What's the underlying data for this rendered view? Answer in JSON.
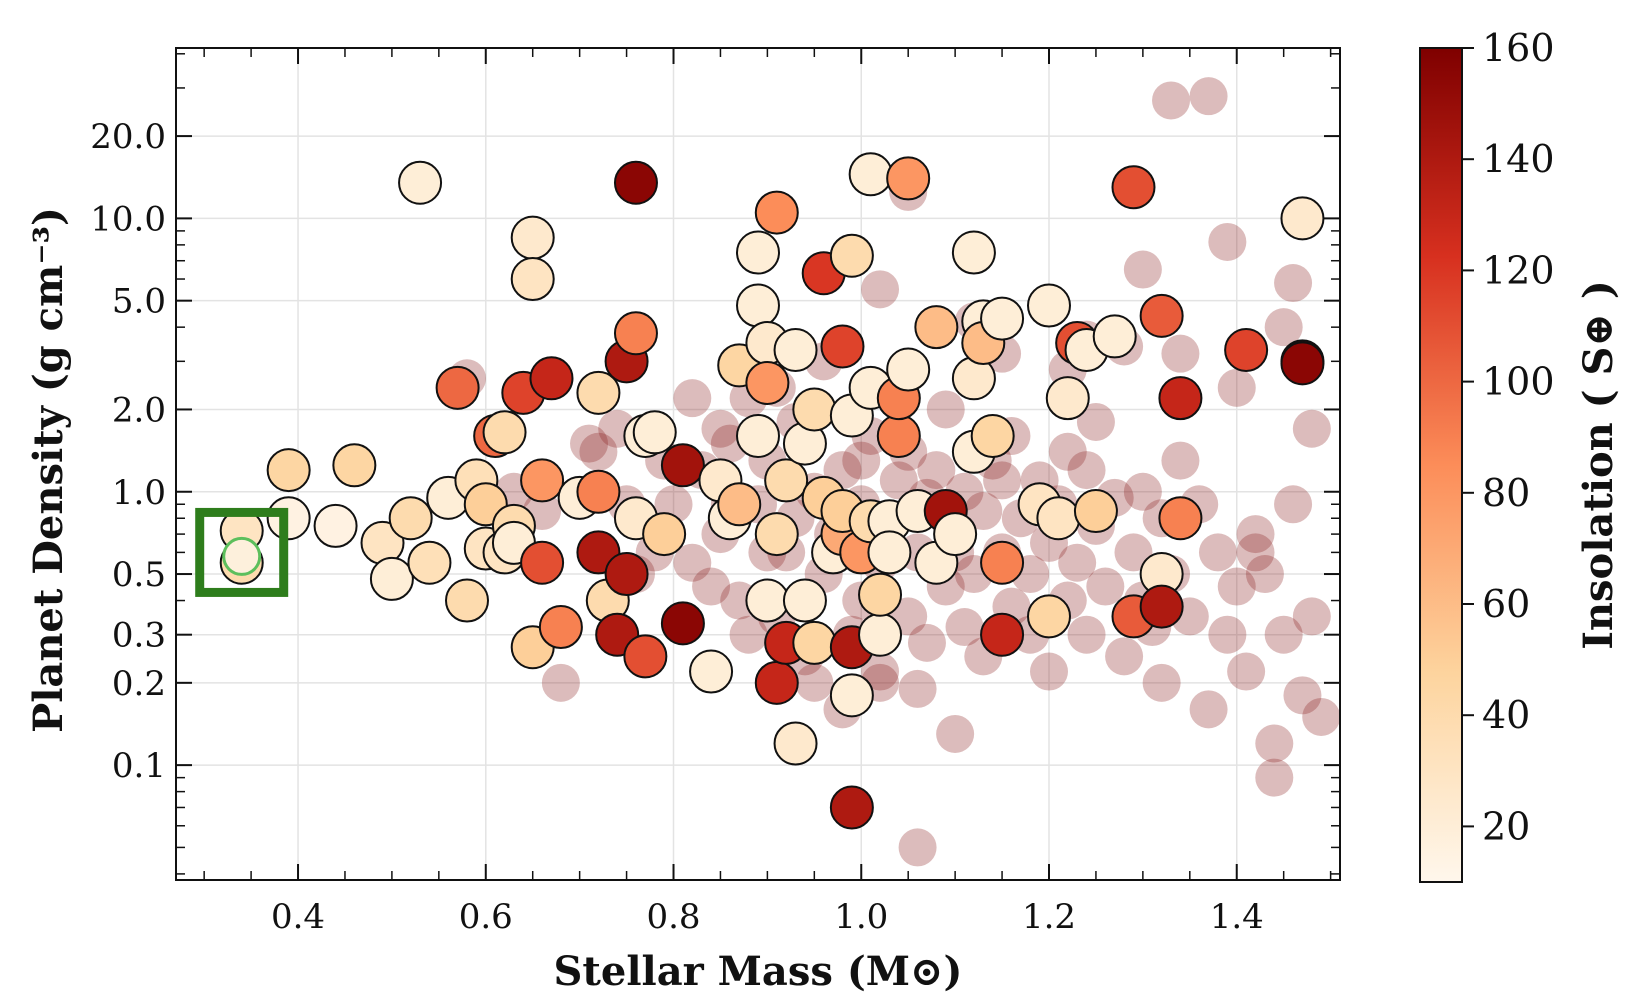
{
  "chart_data": {
    "type": "scatter",
    "title": "",
    "xlabel": "Stellar Mass (M⊙)",
    "ylabel": "Planet Density (g cm⁻³)",
    "xlim": [
      0.27,
      1.51
    ],
    "ylim": [
      0.038,
      42
    ],
    "yscale": "log",
    "grid": true,
    "x_ticks": [
      "0.4",
      "0.6",
      "0.8",
      "1.0",
      "1.2",
      "1.4"
    ],
    "y_ticks": [
      "0.1",
      "0.2",
      "0.3",
      "0.5",
      "1.0",
      "2.0",
      "5.0",
      "10.0",
      "20.0"
    ],
    "colorbar": {
      "label": "Insolation ( S⊕ )",
      "range": [
        10,
        160
      ],
      "ticks": [
        "20",
        "40",
        "60",
        "80",
        "100",
        "120",
        "140",
        "160"
      ],
      "colormap": "OrRd",
      "colors": [
        "#fff7ec",
        "#fdd49e",
        "#fc8d59",
        "#d7301f",
        "#7f0000"
      ]
    },
    "highlight": {
      "type": "square",
      "color": "#2e7d1c",
      "x": 0.34,
      "y": 0.58,
      "marker_color": "#5cbf5c"
    },
    "background_series": {
      "name": "",
      "alpha": 0.3,
      "color": "#8b2020",
      "points": [
        [
          0.58,
          2.6
        ],
        [
          0.63,
          1.0
        ],
        [
          0.66,
          0.85
        ],
        [
          0.68,
          0.2
        ],
        [
          0.72,
          1.4
        ],
        [
          0.74,
          1.7
        ],
        [
          0.76,
          0.5
        ],
        [
          0.78,
          0.6
        ],
        [
          0.8,
          0.9
        ],
        [
          0.82,
          0.55
        ],
        [
          0.83,
          1.2
        ],
        [
          0.84,
          0.45
        ],
        [
          0.85,
          0.7
        ],
        [
          0.86,
          1.5
        ],
        [
          0.87,
          0.4
        ],
        [
          0.88,
          0.3
        ],
        [
          0.88,
          2.2
        ],
        [
          0.89,
          0.9
        ],
        [
          0.9,
          1.3
        ],
        [
          0.91,
          0.35
        ],
        [
          0.92,
          0.6
        ],
        [
          0.93,
          0.8
        ],
        [
          0.93,
          1.8
        ],
        [
          0.94,
          0.25
        ],
        [
          0.95,
          1.0
        ],
        [
          0.96,
          0.5
        ],
        [
          0.97,
          0.7
        ],
        [
          0.98,
          1.2
        ],
        [
          0.99,
          0.3
        ],
        [
          1.0,
          0.4
        ],
        [
          1.0,
          0.9
        ],
        [
          1.01,
          1.6
        ],
        [
          1.02,
          0.55
        ],
        [
          1.02,
          0.22
        ],
        [
          1.03,
          0.75
        ],
        [
          1.04,
          1.1
        ],
        [
          1.05,
          0.35
        ],
        [
          1.05,
          1.4
        ],
        [
          1.06,
          0.6
        ],
        [
          1.07,
          0.28
        ],
        [
          1.07,
          0.95
        ],
        [
          1.08,
          1.2
        ],
        [
          1.09,
          0.45
        ],
        [
          1.09,
          2.0
        ],
        [
          1.1,
          0.7
        ],
        [
          1.11,
          0.32
        ],
        [
          1.11,
          1.0
        ],
        [
          1.12,
          0.5
        ],
        [
          1.13,
          0.85
        ],
        [
          1.13,
          0.25
        ],
        [
          1.14,
          1.3
        ],
        [
          1.15,
          0.6
        ],
        [
          1.16,
          0.38
        ],
        [
          1.16,
          1.6
        ],
        [
          1.17,
          0.8
        ],
        [
          1.18,
          0.3
        ],
        [
          1.18,
          0.5
        ],
        [
          1.19,
          1.1
        ],
        [
          1.2,
          0.65
        ],
        [
          1.2,
          0.22
        ],
        [
          1.21,
          0.9
        ],
        [
          1.22,
          0.4
        ],
        [
          1.22,
          1.4
        ],
        [
          1.23,
          0.55
        ],
        [
          1.24,
          0.3
        ],
        [
          1.25,
          0.75
        ],
        [
          1.25,
          1.8
        ],
        [
          1.26,
          0.45
        ],
        [
          1.27,
          0.95
        ],
        [
          1.28,
          0.25
        ],
        [
          1.29,
          0.6
        ],
        [
          1.3,
          0.4
        ],
        [
          1.3,
          1.0
        ],
        [
          1.31,
          0.32
        ],
        [
          1.32,
          0.8
        ],
        [
          1.32,
          0.2
        ],
        [
          1.33,
          0.5
        ],
        [
          1.34,
          1.3
        ],
        [
          1.35,
          0.35
        ],
        [
          1.36,
          0.9
        ],
        [
          1.37,
          0.16
        ],
        [
          1.38,
          0.6
        ],
        [
          1.39,
          0.3
        ],
        [
          1.4,
          0.45
        ],
        [
          1.41,
          0.22
        ],
        [
          1.42,
          0.7
        ],
        [
          1.43,
          0.5
        ],
        [
          1.44,
          0.12
        ],
        [
          1.45,
          0.3
        ],
        [
          1.46,
          0.9
        ],
        [
          1.47,
          0.18
        ],
        [
          1.48,
          0.35
        ],
        [
          1.49,
          0.15
        ],
        [
          1.48,
          1.7
        ],
        [
          1.46,
          5.8
        ],
        [
          1.45,
          4.0
        ],
        [
          1.4,
          2.4
        ],
        [
          1.39,
          8.2
        ],
        [
          1.34,
          3.2
        ],
        [
          1.33,
          27
        ],
        [
          1.37,
          28
        ],
        [
          1.3,
          6.5
        ],
        [
          1.28,
          3.4
        ],
        [
          1.24,
          3.6
        ],
        [
          1.22,
          2.8
        ],
        [
          1.15,
          3.2
        ],
        [
          1.12,
          4.2
        ],
        [
          1.02,
          5.5
        ],
        [
          0.96,
          3.0
        ],
        [
          0.91,
          2.4
        ],
        [
          0.85,
          1.7
        ],
        [
          0.82,
          2.2
        ],
        [
          0.79,
          1.3
        ],
        [
          0.75,
          0.9
        ],
        [
          0.71,
          1.5
        ],
        [
          0.95,
          0.2
        ],
        [
          0.98,
          0.16
        ],
        [
          1.02,
          0.2
        ],
        [
          1.06,
          0.19
        ],
        [
          1.1,
          0.13
        ],
        [
          1.06,
          0.05
        ],
        [
          1.05,
          12.5
        ],
        [
          1.44,
          0.09
        ],
        [
          1.42,
          0.6
        ],
        [
          1.1,
          0.6
        ],
        [
          1.0,
          1.3
        ],
        [
          0.9,
          0.6
        ],
        [
          0.86,
          0.9
        ],
        [
          1.24,
          1.2
        ],
        [
          1.15,
          1.1
        ]
      ]
    },
    "series": [
      {
        "name": "",
        "points": [
          [
            0.34,
            0.55,
            40
          ],
          [
            0.34,
            0.72,
            30
          ],
          [
            0.39,
            1.2,
            45
          ],
          [
            0.39,
            0.8,
            15
          ],
          [
            0.44,
            0.75,
            15
          ],
          [
            0.46,
            1.25,
            45
          ],
          [
            0.49,
            0.65,
            30
          ],
          [
            0.5,
            0.48,
            20
          ],
          [
            0.52,
            0.8,
            40
          ],
          [
            0.53,
            13.5,
            20
          ],
          [
            0.54,
            0.55,
            35
          ],
          [
            0.56,
            0.95,
            20
          ],
          [
            0.57,
            2.4,
            100
          ],
          [
            0.58,
            0.4,
            40
          ],
          [
            0.59,
            1.1,
            35
          ],
          [
            0.6,
            0.62,
            30
          ],
          [
            0.6,
            0.9,
            50
          ],
          [
            0.61,
            1.6,
            100
          ],
          [
            0.62,
            1.65,
            40
          ],
          [
            0.62,
            0.6,
            30
          ],
          [
            0.63,
            0.75,
            40
          ],
          [
            0.63,
            0.65,
            20
          ],
          [
            0.64,
            2.3,
            115
          ],
          [
            0.65,
            8.5,
            25
          ],
          [
            0.65,
            6.0,
            30
          ],
          [
            0.65,
            0.27,
            50
          ],
          [
            0.66,
            1.1,
            80
          ],
          [
            0.66,
            0.55,
            110
          ],
          [
            0.67,
            2.6,
            130
          ],
          [
            0.68,
            0.32,
            90
          ],
          [
            0.7,
            0.95,
            20
          ],
          [
            0.72,
            2.3,
            40
          ],
          [
            0.72,
            0.6,
            140
          ],
          [
            0.72,
            1.0,
            90
          ],
          [
            0.73,
            0.4,
            40
          ],
          [
            0.74,
            0.3,
            140
          ],
          [
            0.75,
            3.0,
            140
          ],
          [
            0.75,
            0.5,
            140
          ],
          [
            0.76,
            0.8,
            25
          ],
          [
            0.76,
            13.5,
            155
          ],
          [
            0.76,
            3.8,
            90
          ],
          [
            0.77,
            1.6,
            20
          ],
          [
            0.77,
            0.25,
            110
          ],
          [
            0.78,
            1.65,
            20
          ],
          [
            0.79,
            0.7,
            50
          ],
          [
            0.81,
            0.33,
            155
          ],
          [
            0.81,
            1.25,
            145
          ],
          [
            0.84,
            0.22,
            20
          ],
          [
            0.85,
            1.1,
            25
          ],
          [
            0.86,
            0.8,
            20
          ],
          [
            0.87,
            2.9,
            45
          ],
          [
            0.87,
            0.9,
            60
          ],
          [
            0.89,
            1.6,
            20
          ],
          [
            0.89,
            4.8,
            20
          ],
          [
            0.89,
            7.5,
            20
          ],
          [
            0.9,
            3.5,
            25
          ],
          [
            0.9,
            2.5,
            80
          ],
          [
            0.9,
            0.4,
            20
          ],
          [
            0.91,
            0.7,
            40
          ],
          [
            0.91,
            0.2,
            130
          ],
          [
            0.91,
            10.5,
            85
          ],
          [
            0.92,
            0.28,
            130
          ],
          [
            0.92,
            1.1,
            40
          ],
          [
            0.93,
            3.3,
            20
          ],
          [
            0.93,
            0.12,
            25
          ],
          [
            0.94,
            0.4,
            20
          ],
          [
            0.94,
            1.5,
            20
          ],
          [
            0.95,
            2.0,
            40
          ],
          [
            0.95,
            0.28,
            45
          ],
          [
            0.96,
            6.3,
            120
          ],
          [
            0.96,
            0.95,
            50
          ],
          [
            0.97,
            0.6,
            20
          ],
          [
            0.98,
            0.7,
            70
          ],
          [
            0.98,
            0.85,
            50
          ],
          [
            0.98,
            3.4,
            115
          ],
          [
            0.99,
            7.3,
            40
          ],
          [
            0.99,
            0.27,
            140
          ],
          [
            0.99,
            1.9,
            20
          ],
          [
            0.99,
            0.18,
            20
          ],
          [
            0.99,
            0.07,
            140
          ],
          [
            1.0,
            0.6,
            80
          ],
          [
            1.01,
            2.4,
            20
          ],
          [
            1.01,
            0.78,
            40
          ],
          [
            1.01,
            14.5,
            20
          ],
          [
            1.02,
            0.3,
            20
          ],
          [
            1.02,
            0.42,
            45
          ],
          [
            1.03,
            0.78,
            20
          ],
          [
            1.03,
            0.6,
            20
          ],
          [
            1.04,
            1.6,
            90
          ],
          [
            1.04,
            2.2,
            90
          ],
          [
            1.05,
            2.8,
            20
          ],
          [
            1.05,
            14.0,
            80
          ],
          [
            1.06,
            0.85,
            20
          ],
          [
            1.08,
            0.55,
            20
          ],
          [
            1.08,
            4.0,
            60
          ],
          [
            1.09,
            0.85,
            145
          ],
          [
            1.1,
            0.7,
            20
          ],
          [
            1.12,
            1.4,
            20
          ],
          [
            1.12,
            2.6,
            25
          ],
          [
            1.12,
            7.5,
            20
          ],
          [
            1.13,
            4.2,
            20
          ],
          [
            1.13,
            3.5,
            60
          ],
          [
            1.14,
            1.6,
            45
          ],
          [
            1.15,
            0.55,
            90
          ],
          [
            1.15,
            0.3,
            130
          ],
          [
            1.15,
            4.3,
            20
          ],
          [
            1.19,
            0.9,
            30
          ],
          [
            1.2,
            4.8,
            20
          ],
          [
            1.2,
            0.35,
            45
          ],
          [
            1.21,
            0.8,
            30
          ],
          [
            1.22,
            2.2,
            25
          ],
          [
            1.23,
            3.5,
            110
          ],
          [
            1.24,
            3.3,
            20
          ],
          [
            1.25,
            0.85,
            50
          ],
          [
            1.27,
            3.7,
            20
          ],
          [
            1.29,
            0.35,
            105
          ],
          [
            1.29,
            13.0,
            110
          ],
          [
            1.32,
            0.5,
            25
          ],
          [
            1.32,
            0.38,
            140
          ],
          [
            1.32,
            4.4,
            105
          ],
          [
            1.34,
            0.8,
            90
          ],
          [
            1.34,
            2.2,
            130
          ],
          [
            1.41,
            3.3,
            115
          ],
          [
            1.47,
            10.0,
            25
          ],
          [
            1.47,
            3.0,
            155
          ],
          [
            1.47,
            2.95,
            155
          ]
        ]
      }
    ]
  }
}
